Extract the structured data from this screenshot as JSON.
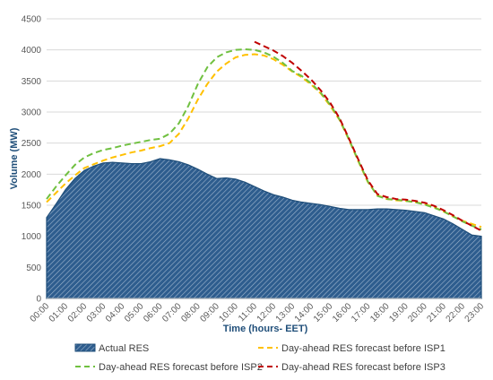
{
  "chart_data": {
    "type": "area",
    "title": "",
    "xlabel": "Time (hours- EET)",
    "ylabel": "Volume (MW)",
    "ylim": [
      0,
      4500
    ],
    "yticks": [
      0,
      500,
      1000,
      1500,
      2000,
      2500,
      3000,
      3500,
      4000,
      4500
    ],
    "grid": "horizontal",
    "legend_position": "bottom",
    "categories": [
      "00:00",
      "01:00",
      "02:00",
      "03:00",
      "04:00",
      "05:00",
      "06:00",
      "07:00",
      "08:00",
      "09:00",
      "10:00",
      "11:00",
      "12:00",
      "13:00",
      "14:00",
      "15:00",
      "16:00",
      "17:00",
      "18:00",
      "19:00",
      "20:00",
      "21:00",
      "22:00",
      "23:00"
    ],
    "series": [
      {
        "name": "Actual RES",
        "kind": "area",
        "color": "#1f4e79",
        "fill": "hatched",
        "x": [
          0,
          0.5,
          1,
          1.5,
          2,
          2.5,
          3,
          3.5,
          4,
          4.5,
          5,
          5.5,
          6,
          6.5,
          7,
          7.5,
          8,
          8.5,
          9,
          9.5,
          10,
          10.5,
          11,
          11.5,
          12,
          12.5,
          13,
          13.5,
          14,
          14.5,
          15,
          15.5,
          16,
          16.5,
          17,
          17.5,
          18,
          18.5,
          19,
          19.5,
          20,
          20.5,
          21,
          21.5,
          22,
          22.5,
          23
        ],
        "values": [
          1300,
          1520,
          1750,
          1930,
          2060,
          2130,
          2180,
          2190,
          2180,
          2170,
          2170,
          2200,
          2250,
          2230,
          2200,
          2150,
          2080,
          2000,
          1930,
          1940,
          1920,
          1870,
          1800,
          1730,
          1670,
          1630,
          1580,
          1550,
          1530,
          1510,
          1480,
          1450,
          1430,
          1430,
          1430,
          1440,
          1440,
          1430,
          1420,
          1400,
          1380,
          1330,
          1280,
          1200,
          1110,
          1020,
          1000
        ]
      },
      {
        "name": "Day-ahead RES forecast before ISP1",
        "kind": "line",
        "color": "#ffc000",
        "x": [
          0,
          0.5,
          1,
          1.5,
          2,
          2.5,
          3,
          3.5,
          4,
          4.5,
          5,
          5.5,
          6,
          6.5,
          7,
          7.5,
          8,
          8.5,
          9,
          9.5,
          10,
          10.5,
          11,
          11.5,
          12,
          12.5,
          13,
          13.5,
          14,
          14.5,
          15,
          15.5,
          16,
          16.5,
          17,
          17.5,
          18,
          18.5,
          19,
          19.5,
          20,
          20.5,
          21,
          21.5,
          22,
          22.5,
          23
        ],
        "values": [
          1550,
          1700,
          1850,
          1980,
          2100,
          2160,
          2220,
          2270,
          2310,
          2350,
          2380,
          2420,
          2450,
          2500,
          2650,
          2900,
          3200,
          3450,
          3650,
          3780,
          3880,
          3920,
          3930,
          3910,
          3850,
          3760,
          3650,
          3560,
          3440,
          3300,
          3100,
          2870,
          2550,
          2200,
          1870,
          1660,
          1600,
          1580,
          1570,
          1550,
          1520,
          1470,
          1400,
          1320,
          1250,
          1200,
          1150
        ]
      },
      {
        "name": "Day-ahead RES forecast before ISP2",
        "kind": "line",
        "color": "#70c040",
        "x": [
          0,
          0.5,
          1,
          1.5,
          2,
          2.5,
          3,
          3.5,
          4,
          4.5,
          5,
          5.5,
          6,
          6.5,
          7,
          7.5,
          8,
          8.5,
          9,
          9.5,
          10,
          10.5,
          11,
          11.5,
          12,
          12.5,
          13,
          13.5,
          14,
          14.5,
          15,
          15.5,
          16,
          16.5,
          17,
          17.5,
          18,
          18.5,
          19,
          19.5,
          20,
          20.5,
          21,
          21.5,
          22,
          22.5,
          23
        ],
        "values": [
          1600,
          1800,
          1980,
          2150,
          2270,
          2340,
          2390,
          2420,
          2460,
          2490,
          2520,
          2550,
          2570,
          2650,
          2820,
          3100,
          3450,
          3720,
          3880,
          3960,
          4000,
          4010,
          4000,
          3960,
          3890,
          3790,
          3660,
          3580,
          3460,
          3310,
          3120,
          2880,
          2560,
          2210,
          1880,
          1650,
          1600,
          1590,
          1570,
          1550,
          1510,
          1460,
          1400,
          1320,
          1240,
          1170,
          1110
        ]
      },
      {
        "name": "Day-ahead RES forecast before ISP3",
        "kind": "line",
        "color": "#c00000",
        "x": [
          11,
          11.5,
          12,
          12.5,
          13,
          13.5,
          14,
          14.5,
          15,
          15.5,
          16,
          16.5,
          17,
          17.5,
          18,
          18.5,
          19,
          19.5,
          20,
          20.5,
          21,
          21.5,
          22,
          22.5,
          23
        ],
        "values": [
          4130,
          4060,
          3990,
          3900,
          3790,
          3660,
          3520,
          3350,
          3150,
          2900,
          2570,
          2230,
          1900,
          1680,
          1630,
          1600,
          1590,
          1570,
          1540,
          1490,
          1420,
          1340,
          1250,
          1170,
          1090
        ]
      }
    ]
  }
}
